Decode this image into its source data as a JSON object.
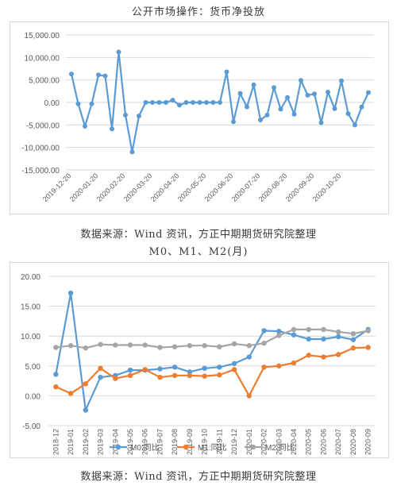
{
  "chart1": {
    "title": "公开市场操作：货币净投放",
    "source": "数据来源：Wind 资讯，方正中期期货研究院整理",
    "chart_data": {
      "type": "line",
      "title": "公开市场操作：货币净投放",
      "ylim": [
        -15000,
        15000
      ],
      "yticks": [
        "15,000.00",
        "10,000.00",
        "5,000.00",
        "0.00",
        "-5,000.00",
        "-10,000.00",
        "-15,000.00"
      ],
      "ytick_values": [
        15000,
        10000,
        5000,
        0,
        -5000,
        -10000,
        -15000
      ],
      "xtick_labels": [
        "2019-12-20",
        "2020-01-20",
        "2020-02-20",
        "2020-03-20",
        "2020-04-20",
        "2020-05-20",
        "2020-06-20",
        "2020-07-20",
        "2020-08-20",
        "2020-09-20",
        "2020-10-20"
      ],
      "xtick_positions": [
        0,
        4,
        8,
        12,
        16,
        20,
        24,
        28,
        32,
        36,
        40
      ],
      "color": "#5b9bd5",
      "values": [
        6300,
        -300,
        -5300,
        -300,
        6100,
        5900,
        -5900,
        11200,
        -2800,
        -11000,
        -3000,
        0,
        0,
        0,
        0,
        500,
        -600,
        0,
        0,
        0,
        0,
        0,
        0,
        6800,
        -4300,
        2000,
        -1000,
        3900,
        -3900,
        -2800,
        3300,
        -1500,
        1100,
        -2600,
        4900,
        1600,
        1900,
        -4500,
        2300,
        -1400,
        4800,
        -2500,
        -5000,
        -1000,
        2200
      ],
      "grid": "horizontal"
    }
  },
  "chart2": {
    "title": "M0、M1、M2(月)",
    "source": "数据来源：Wind 资讯，方正中期期货研究院整理",
    "chart_data": {
      "type": "line",
      "title": "M0、M1、M2(月)",
      "ylim": [
        -5,
        20
      ],
      "yticks": [
        "20.00",
        "15.00",
        "10.00",
        "5.00",
        "0.00",
        "-5.00"
      ],
      "ytick_values": [
        20,
        15,
        10,
        5,
        0,
        -5
      ],
      "categories": [
        "2018-12",
        "2019-01",
        "2019-02",
        "2019-03",
        "2019-04",
        "2019-05",
        "2019-06",
        "2019-07",
        "2019-08",
        "2019-09",
        "2019-10",
        "2019-11",
        "2019-12",
        "2020-01",
        "2020-02",
        "2020-03",
        "2020-04",
        "2020-05",
        "2020-06",
        "2020-07",
        "2020-08",
        "2020-09"
      ],
      "legend_position": "bottom",
      "grid": "horizontal",
      "series": [
        {
          "name": "M0:同比",
          "color": "#5b9bd5",
          "values": [
            3.6,
            17.2,
            -2.4,
            3.1,
            3.4,
            4.3,
            4.3,
            4.5,
            4.8,
            4.0,
            4.6,
            4.8,
            5.4,
            6.5,
            10.9,
            10.8,
            10.2,
            9.5,
            9.5,
            9.9,
            9.4,
            11.1
          ]
        },
        {
          "name": "M1:同比",
          "color": "#ed7d31",
          "values": [
            1.5,
            0.4,
            2.0,
            4.6,
            2.9,
            3.4,
            4.4,
            3.1,
            3.4,
            3.4,
            3.3,
            3.5,
            4.4,
            0.0,
            4.8,
            5.0,
            5.5,
            6.8,
            6.5,
            6.9,
            8.0,
            8.1
          ]
        },
        {
          "name": "M2:同比",
          "color": "#a5a5a5",
          "values": [
            8.1,
            8.4,
            8.0,
            8.6,
            8.5,
            8.5,
            8.5,
            8.1,
            8.2,
            8.4,
            8.4,
            8.2,
            8.7,
            8.4,
            8.8,
            10.1,
            11.1,
            11.1,
            11.1,
            10.7,
            10.4,
            10.9
          ]
        }
      ]
    }
  }
}
